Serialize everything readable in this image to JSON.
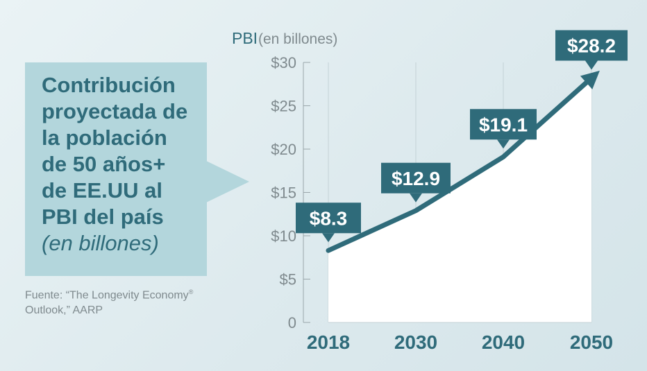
{
  "headline": {
    "line1": "Contribución",
    "line2": "proyectada de",
    "line3": "la población",
    "line4": "de 50 años+",
    "line5": "de EE.UU al",
    "line6": "PBI del país",
    "line7": "(en billones)"
  },
  "source": {
    "line1": "Fuente: “The Longevity Economy",
    "mark": "®",
    "line2": "Outlook,” AARP"
  },
  "colors": {
    "accent": "#2f6b7a",
    "title_box": "#b3d6dc",
    "axis_text": "#7f8a8e"
  },
  "chart_data": {
    "type": "area",
    "ylabel_main": "PBI",
    "ylabel_unit": "(en billones)",
    "categories": [
      "2018",
      "2030",
      "2040",
      "2050"
    ],
    "values": [
      8.3,
      12.9,
      19.1,
      28.2
    ],
    "data_labels": [
      "$8.3",
      "$12.9",
      "$19.1",
      "$28.2"
    ],
    "ylim": [
      0,
      30
    ],
    "yticks": [
      0,
      5,
      10,
      15,
      20,
      25,
      30
    ],
    "ytick_labels": [
      "0",
      "$5",
      "$10",
      "$15",
      "$20",
      "$25",
      "$30"
    ],
    "grid": true,
    "legend": "none"
  }
}
